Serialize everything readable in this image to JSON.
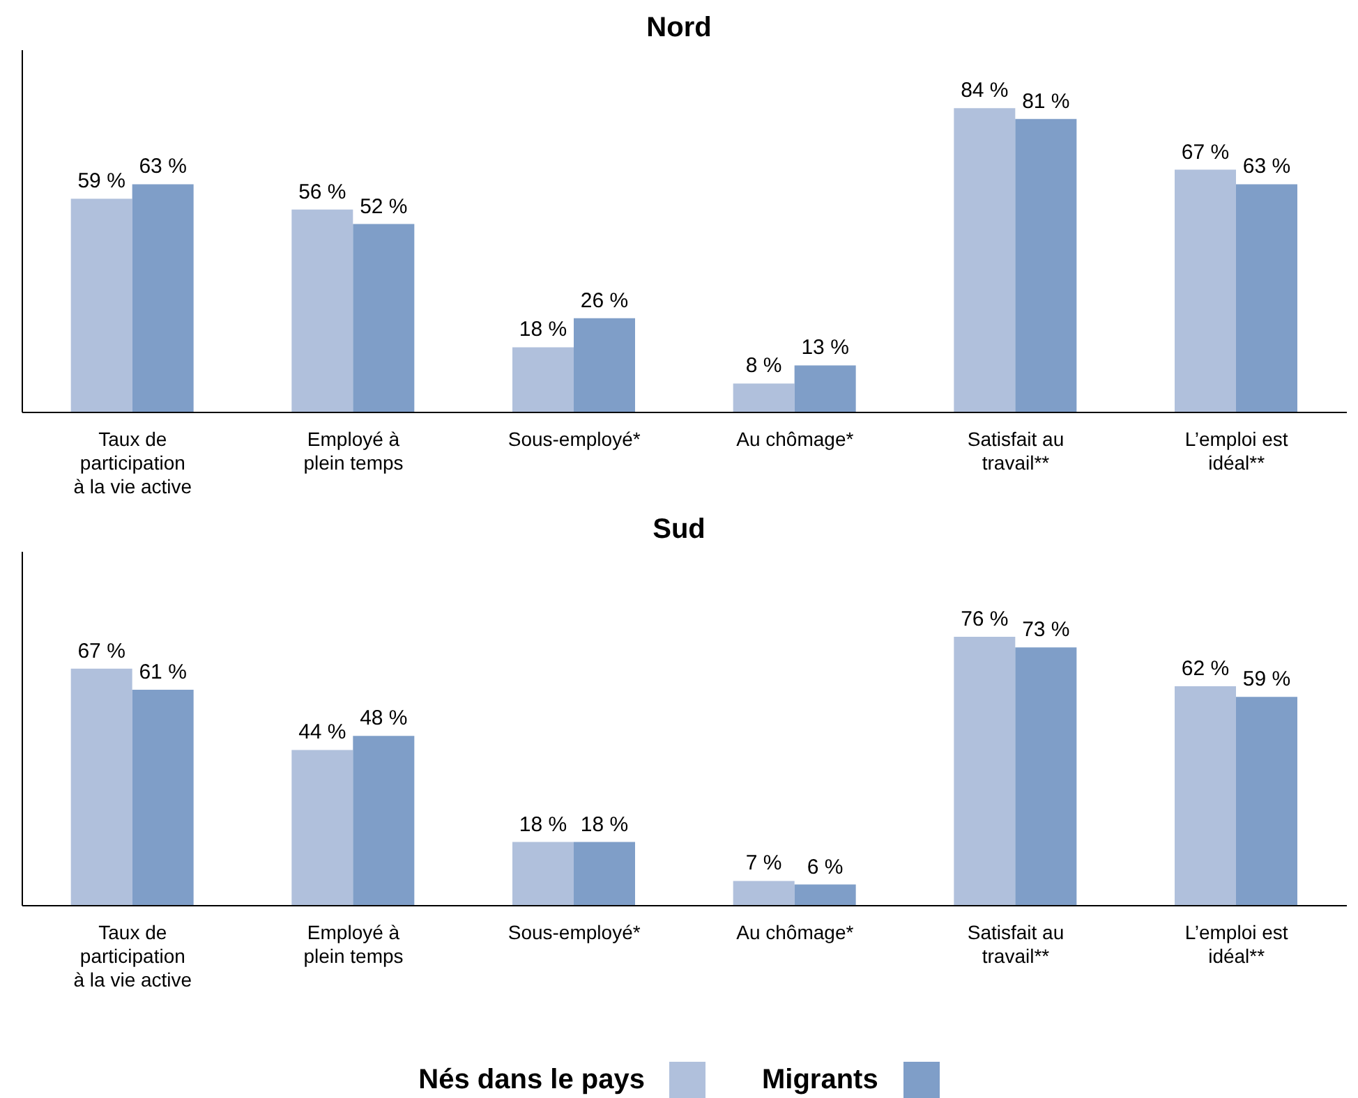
{
  "chart_data": [
    {
      "type": "bar",
      "title": "Nord",
      "categories": [
        "Taux de participation à la vie active",
        "Employé à plein temps",
        "Sous-employé*",
        "Au chômage*",
        "Satisfait au travail**",
        "L’emploi est idéal**"
      ],
      "series": [
        {
          "color": "#b0c0dc",
          "values": [
            59,
            56,
            18,
            8,
            84,
            67
          ],
          "value_labels": [
            "59 %",
            "56 %",
            "18 %",
            "8 %",
            "84 %",
            "67 %"
          ]
        },
        {
          "color": "#7f9ec8",
          "values": [
            63,
            52,
            26,
            13,
            81,
            63
          ],
          "value_labels": [
            "63 %",
            "52 %",
            "26 %",
            "13 %",
            "81 %",
            "63 %"
          ]
        }
      ],
      "ylim": [
        0,
        100
      ],
      "tick_labels": "x",
      "grid": false,
      "legend": false
    },
    {
      "type": "bar",
      "title": "Sud",
      "categories": [
        "Taux de participation à la vie active",
        "Employé à plein temps",
        "Sous-employé*",
        "Au chômage*",
        "Satisfait au travail**",
        "L’emploi est idéal**"
      ],
      "series": [
        {
          "name": "Nés dans le pays",
          "color": "#b0c0dc",
          "values": [
            67,
            44,
            18,
            7,
            76,
            62
          ],
          "value_labels": [
            "67 %",
            "44 %",
            "18 %",
            "7 %",
            "76 %",
            "62 %"
          ]
        },
        {
          "name": "Migrants",
          "color": "#7f9ec8",
          "values": [
            61,
            48,
            18,
            6,
            73,
            59
          ],
          "value_labels": [
            "61 %",
            "48 %",
            "18 %",
            "6 %",
            "73 %",
            "59 %"
          ]
        }
      ],
      "ylim": [
        0,
        100
      ],
      "tick_labels": "x",
      "grid": false,
      "legend": "bottom"
    }
  ]
}
